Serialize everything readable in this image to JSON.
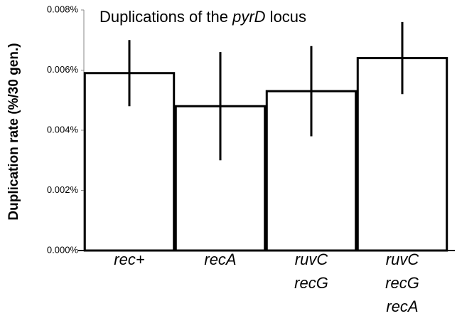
{
  "chart_data": {
    "type": "bar",
    "title": [
      "Duplications of the ",
      "pyrD",
      " locus"
    ],
    "title_italic": [
      false,
      true,
      false
    ],
    "y_label": "Duplication rate (%/30 gen.)",
    "categories": [
      [
        "rec+"
      ],
      [
        "recA"
      ],
      [
        "ruvC",
        "recG"
      ],
      [
        "ruvC",
        "recG",
        "recA"
      ]
    ],
    "values": [
      0.0059,
      0.0048,
      0.0053,
      0.0064
    ],
    "errors": [
      0.0011,
      0.0018,
      0.0015,
      0.0012
    ],
    "color": "#ffffff",
    "ylim": [
      0,
      0.008
    ],
    "yticks": [
      {
        "value": 0,
        "label": "0.000%"
      },
      {
        "value": 0.002,
        "label": "0.002%"
      },
      {
        "value": 0.004,
        "label": "0.004%"
      },
      {
        "value": 0.006,
        "label": "0.006%"
      },
      {
        "value": 0.008,
        "label": "0.008%"
      }
    ],
    "grid": false
  }
}
